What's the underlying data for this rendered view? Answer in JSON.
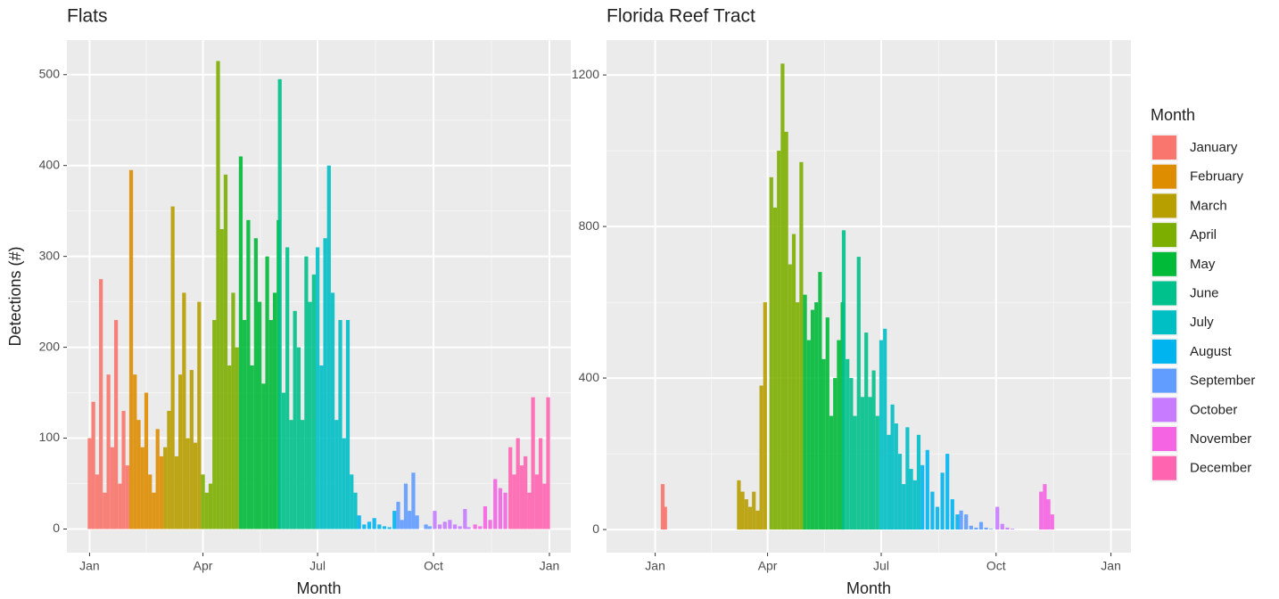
{
  "chart_data": [
    {
      "type": "bar",
      "title": "Flats",
      "x_label": "Month",
      "y_label": "Detections (#)",
      "xlim": [
        -17,
        383
      ],
      "ylim": [
        -26,
        538
      ],
      "xticks": [
        {
          "value": 1,
          "label": "Jan"
        },
        {
          "value": 91,
          "label": "Apr"
        },
        {
          "value": 182,
          "label": "Jul"
        },
        {
          "value": 274,
          "label": "Oct"
        },
        {
          "value": 366,
          "label": "Jan"
        }
      ],
      "yticks": [
        0,
        100,
        200,
        300,
        400,
        500
      ],
      "grid": true,
      "series": [
        {
          "x": [
            1,
            4,
            7,
            10,
            13,
            16,
            19,
            22,
            25,
            28,
            31
          ],
          "values": [
            100,
            140,
            60,
            275,
            40,
            170,
            90,
            230,
            50,
            130,
            70
          ]
        },
        {
          "x": [
            34,
            37,
            40,
            43,
            46,
            49,
            52,
            55,
            58
          ],
          "values": [
            395,
            170,
            120,
            90,
            150,
            60,
            40,
            110,
            80
          ]
        },
        {
          "x": [
            61,
            64,
            67,
            70,
            73,
            76,
            79,
            82,
            85,
            88
          ],
          "values": [
            90,
            130,
            355,
            80,
            170,
            260,
            100,
            175,
            95,
            250
          ]
        },
        {
          "x": [
            91,
            94,
            97,
            100,
            103,
            106,
            109,
            112,
            115,
            118
          ],
          "values": [
            60,
            40,
            50,
            230,
            515,
            330,
            390,
            180,
            260,
            200
          ]
        },
        {
          "x": [
            121,
            124,
            127,
            130,
            133,
            136,
            139,
            142,
            145,
            148,
            151
          ],
          "values": [
            410,
            230,
            340,
            180,
            320,
            250,
            160,
            300,
            230,
            260,
            340
          ]
        },
        {
          "x": [
            152,
            155,
            158,
            161,
            164,
            167,
            170,
            173,
            176,
            179
          ],
          "values": [
            495,
            150,
            310,
            120,
            240,
            200,
            120,
            300,
            250,
            280
          ]
        },
        {
          "x": [
            182,
            185,
            188,
            191,
            194,
            197,
            200,
            203,
            206,
            209,
            212
          ],
          "values": [
            310,
            180,
            320,
            400,
            260,
            120,
            230,
            100,
            230,
            60,
            40
          ]
        },
        {
          "x": [
            215,
            219,
            223,
            227,
            231,
            235,
            239,
            243
          ],
          "values": [
            15,
            5,
            8,
            12,
            5,
            3,
            2,
            20
          ]
        },
        {
          "x": [
            246,
            249,
            252,
            255,
            258,
            261,
            264,
            268,
            271
          ],
          "values": [
            30,
            10,
            50,
            20,
            62,
            15,
            0,
            5,
            3
          ]
        },
        {
          "x": [
            275,
            279,
            283,
            287,
            291,
            295,
            299,
            302
          ],
          "values": [
            20,
            5,
            8,
            10,
            5,
            3,
            22,
            2
          ]
        },
        {
          "x": [
            307,
            311,
            315,
            319,
            323,
            327,
            331
          ],
          "values": [
            5,
            3,
            25,
            10,
            55,
            45,
            40
          ]
        },
        {
          "x": [
            335,
            338,
            341,
            344,
            347,
            350,
            353,
            356,
            359,
            362,
            365
          ],
          "values": [
            90,
            60,
            100,
            70,
            80,
            40,
            145,
            60,
            100,
            50,
            145
          ]
        }
      ]
    },
    {
      "type": "bar",
      "title": "Florida Reef Tract",
      "x_label": "Month",
      "xlim": [
        -38,
        382
      ],
      "ylim": [
        -61,
        1292
      ],
      "xticks": [
        {
          "value": 1,
          "label": "Jan"
        },
        {
          "value": 91,
          "label": "Apr"
        },
        {
          "value": 182,
          "label": "Jul"
        },
        {
          "value": 274,
          "label": "Oct"
        },
        {
          "value": 366,
          "label": "Jan"
        }
      ],
      "yticks": [
        0,
        400,
        800,
        1200
      ],
      "grid": true,
      "series": [
        {
          "x": [
            7,
            9
          ],
          "values": [
            120,
            60
          ]
        },
        {
          "x": [],
          "values": []
        },
        {
          "x": [
            68,
            71,
            74,
            77,
            80,
            83,
            86,
            89
          ],
          "values": [
            130,
            100,
            80,
            60,
            100,
            50,
            380,
            600
          ]
        },
        {
          "x": [
            94,
            97,
            100,
            103,
            106,
            109,
            112,
            115,
            118
          ],
          "values": [
            930,
            850,
            1000,
            1230,
            1050,
            700,
            780,
            600,
            970
          ]
        },
        {
          "x": [
            121,
            124,
            127,
            130,
            133,
            136,
            139,
            142,
            145,
            148,
            151
          ],
          "values": [
            620,
            500,
            580,
            600,
            680,
            450,
            560,
            300,
            400,
            500,
            600
          ]
        },
        {
          "x": [
            152,
            155,
            158,
            161,
            164,
            167,
            170,
            173,
            176,
            179
          ],
          "values": [
            790,
            450,
            400,
            300,
            720,
            350,
            520,
            350,
            420,
            300
          ]
        },
        {
          "x": [
            182,
            185,
            188,
            191,
            194,
            197,
            200,
            203,
            206,
            209,
            212
          ],
          "values": [
            500,
            530,
            250,
            330,
            280,
            200,
            120,
            270,
            160,
            130,
            250
          ]
        },
        {
          "x": [
            215,
            219,
            223,
            227,
            231,
            235,
            239,
            243
          ],
          "values": [
            170,
            210,
            100,
            60,
            150,
            200,
            80,
            40
          ]
        },
        {
          "x": [
            246,
            250,
            254,
            258,
            262,
            266,
            270
          ],
          "values": [
            50,
            40,
            10,
            5,
            20,
            5,
            2
          ]
        },
        {
          "x": [
            275,
            279,
            283,
            287
          ],
          "values": [
            60,
            15,
            5,
            2
          ]
        },
        {
          "x": [
            310,
            313,
            316,
            319
          ],
          "values": [
            100,
            120,
            80,
            40
          ]
        },
        {
          "x": [],
          "values": []
        }
      ]
    }
  ],
  "legend": {
    "title": "Month",
    "entries": [
      {
        "name": "January",
        "color": "#F8766D"
      },
      {
        "name": "February",
        "color": "#DE8C00"
      },
      {
        "name": "March",
        "color": "#B79F00"
      },
      {
        "name": "April",
        "color": "#7CAE00"
      },
      {
        "name": "May",
        "color": "#00BA38"
      },
      {
        "name": "June",
        "color": "#00C08B"
      },
      {
        "name": "July",
        "color": "#00BFC4"
      },
      {
        "name": "August",
        "color": "#00B4F0"
      },
      {
        "name": "September",
        "color": "#619CFF"
      },
      {
        "name": "October",
        "color": "#C77CFF"
      },
      {
        "name": "November",
        "color": "#F564E3"
      },
      {
        "name": "December",
        "color": "#FF64B0"
      }
    ]
  }
}
